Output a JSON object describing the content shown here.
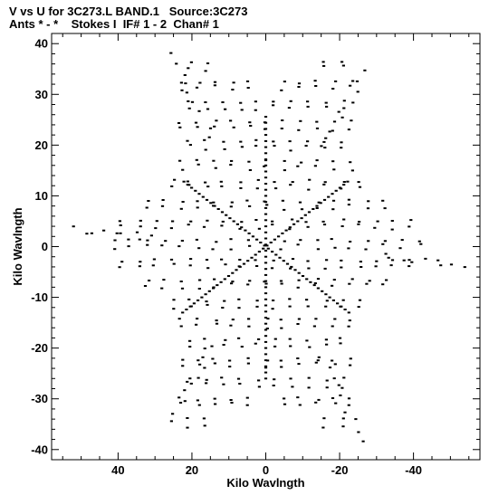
{
  "chart_data": {
    "type": "scatter",
    "title": "V vs U for 3C273.L BAND.1   Source:3C273",
    "subtitle": "Ants * - *    Stokes I  IF# 1 - 2  Chan# 1",
    "xlabel": "Kilo Wavlngth",
    "ylabel": "Kilo Wavlngth",
    "xlim": [
      58,
      -58
    ],
    "ylim": [
      -42,
      42
    ],
    "x_axis_reversed": true,
    "xticks": [
      40,
      20,
      0,
      -20,
      -40
    ],
    "xtick_labels": [
      "40",
      "20",
      "0",
      "-20",
      "-40"
    ],
    "yticks": [
      40,
      30,
      20,
      10,
      0,
      -10,
      -20,
      -30,
      -40
    ],
    "ytick_labels": [
      "40",
      "30",
      "20",
      "10",
      "0",
      "-10",
      "-20",
      "-30",
      "-40"
    ],
    "grid": false,
    "marker_color": "#000000",
    "arms": [
      {
        "direction": "N",
        "tip": [
          0.0,
          25.0
        ]
      },
      {
        "direction": "NE",
        "tip": [
          -28.0,
          12.0
        ]
      },
      {
        "direction": "SE",
        "tip": [
          -28.0,
          -14.0
        ]
      },
      {
        "direction": "S",
        "tip": [
          0.0,
          -25.0
        ]
      },
      {
        "direction": "SW",
        "tip": [
          28.0,
          -12.0
        ]
      },
      {
        "direction": "NW",
        "tip": [
          28.0,
          14.0
        ]
      }
    ],
    "outer_tips": [
      [
        27.0,
        40.0
      ],
      [
        -28.0,
        36.0
      ],
      [
        -57.0,
        -3.5
      ],
      [
        -28.0,
        -40.0
      ],
      [
        27.0,
        -36.0
      ],
      [
        55.0,
        3.5
      ]
    ],
    "points_note": "UV coverage pattern; ~ hexagonal-star distribution of visibility samples"
  }
}
